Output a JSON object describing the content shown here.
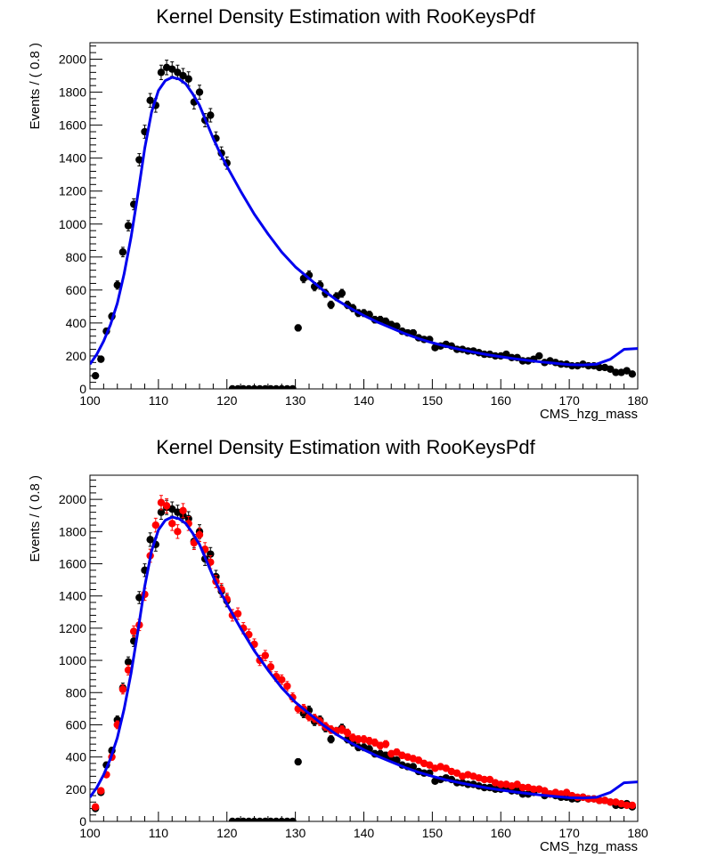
{
  "chart_data": [
    {
      "type": "scatter",
      "title": "Kernel Density Estimation with RooKeysPdf",
      "xlabel": "CMS_hzg_mass",
      "ylabel": "Events / ( 0.8 )",
      "xlim": [
        100,
        180
      ],
      "ylim": [
        0,
        2100
      ],
      "xticks": [
        "100",
        "110",
        "120",
        "130",
        "140",
        "150",
        "160",
        "170",
        "180"
      ],
      "yticks": [
        "0",
        "200",
        "400",
        "600",
        "800",
        "1000",
        "1200",
        "1400",
        "1600",
        "1800",
        "2000"
      ],
      "grid": false,
      "series": [
        {
          "kind": "points",
          "color": "#000000",
          "x": [
            100.8,
            101.6,
            102.4,
            103.2,
            104.0,
            104.8,
            105.6,
            106.4,
            107.2,
            108.0,
            108.8,
            109.6,
            110.4,
            111.2,
            112.0,
            112.8,
            113.6,
            114.4,
            115.2,
            116.0,
            116.8,
            117.6,
            118.4,
            119.2,
            120.0,
            120.8,
            121.6,
            122.4,
            123.2,
            124.0,
            124.8,
            125.6,
            126.4,
            127.2,
            128.0,
            128.8,
            129.6,
            130.4,
            131.2,
            132.0,
            132.8,
            133.6,
            134.4,
            135.2,
            136.0,
            136.8,
            137.6,
            138.4,
            139.2,
            140.0,
            140.8,
            141.6,
            142.4,
            143.2,
            144.0,
            144.8,
            145.6,
            146.4,
            147.2,
            148.0,
            148.8,
            149.6,
            150.4,
            151.2,
            152.0,
            152.8,
            153.6,
            154.4,
            155.2,
            156.0,
            156.8,
            157.6,
            158.4,
            159.2,
            160.0,
            160.8,
            161.6,
            162.4,
            163.2,
            164.0,
            164.8,
            165.6,
            166.4,
            167.2,
            168.0,
            168.8,
            169.6,
            170.4,
            171.2,
            172.0,
            172.8,
            173.6,
            174.4,
            175.2,
            176.0,
            176.8,
            177.6,
            178.4,
            179.2
          ],
          "y": [
            80,
            180,
            350,
            440,
            630,
            830,
            990,
            1120,
            1390,
            1560,
            1750,
            1720,
            1920,
            1950,
            1940,
            1920,
            1900,
            1880,
            1740,
            1800,
            1630,
            1660,
            1520,
            1430,
            1370,
            0,
            0,
            0,
            0,
            0,
            0,
            0,
            0,
            0,
            0,
            0,
            0,
            370,
            670,
            690,
            620,
            630,
            580,
            510,
            560,
            580,
            510,
            490,
            460,
            460,
            450,
            420,
            420,
            410,
            390,
            380,
            350,
            340,
            340,
            310,
            300,
            300,
            250,
            260,
            270,
            260,
            240,
            240,
            230,
            230,
            220,
            210,
            210,
            200,
            200,
            210,
            190,
            190,
            170,
            170,
            180,
            200,
            160,
            170,
            160,
            150,
            150,
            140,
            140,
            150,
            140,
            140,
            130,
            130,
            120,
            100,
            100,
            110,
            90
          ]
        },
        {
          "kind": "curve",
          "color": "#0000ee",
          "x": [
            100,
            101,
            102,
            103,
            104,
            105,
            106,
            107,
            108,
            109,
            110,
            111,
            112,
            113,
            114,
            115,
            116,
            117,
            118,
            119,
            120,
            122,
            124,
            126,
            128,
            130,
            132,
            134,
            136,
            138,
            140,
            142,
            144,
            146,
            148,
            150,
            152,
            154,
            156,
            158,
            160,
            162,
            164,
            166,
            168,
            170,
            172,
            174,
            176,
            178,
            180
          ],
          "y": [
            150,
            210,
            290,
            390,
            520,
            700,
            920,
            1180,
            1460,
            1680,
            1810,
            1870,
            1890,
            1880,
            1850,
            1790,
            1720,
            1620,
            1520,
            1430,
            1350,
            1200,
            1060,
            940,
            830,
            740,
            670,
            600,
            540,
            490,
            445,
            405,
            370,
            335,
            305,
            280,
            258,
            240,
            223,
            208,
            195,
            183,
            173,
            163,
            155,
            147,
            145,
            150,
            180,
            240,
            245
          ]
        }
      ]
    },
    {
      "type": "scatter",
      "title": "Kernel Density Estimation with RooKeysPdf",
      "xlabel": "CMS_hzg_mass",
      "ylabel": "Events / ( 0.8 )",
      "xlim": [
        100,
        180
      ],
      "ylim": [
        0,
        2150
      ],
      "xticks": [
        "100",
        "110",
        "120",
        "130",
        "140",
        "150",
        "160",
        "170",
        "180"
      ],
      "yticks": [
        "0",
        "200",
        "400",
        "600",
        "800",
        "1000",
        "1200",
        "1400",
        "1600",
        "1800",
        "2000"
      ],
      "grid": false,
      "series": [
        {
          "kind": "points",
          "color": "#000000",
          "x": [
            100.8,
            101.6,
            102.4,
            103.2,
            104.0,
            104.8,
            105.6,
            106.4,
            107.2,
            108.0,
            108.8,
            109.6,
            110.4,
            111.2,
            112.0,
            112.8,
            113.6,
            114.4,
            115.2,
            116.0,
            116.8,
            117.6,
            118.4,
            119.2,
            120.0,
            120.8,
            121.6,
            122.4,
            123.2,
            124.0,
            124.8,
            125.6,
            126.4,
            127.2,
            128.0,
            128.8,
            129.6,
            130.4,
            131.2,
            132.0,
            132.8,
            133.6,
            134.4,
            135.2,
            136.0,
            136.8,
            137.6,
            138.4,
            139.2,
            140.0,
            140.8,
            141.6,
            142.4,
            143.2,
            144.0,
            144.8,
            145.6,
            146.4,
            147.2,
            148.0,
            148.8,
            149.6,
            150.4,
            151.2,
            152.0,
            152.8,
            153.6,
            154.4,
            155.2,
            156.0,
            156.8,
            157.6,
            158.4,
            159.2,
            160.0,
            160.8,
            161.6,
            162.4,
            163.2,
            164.0,
            164.8,
            165.6,
            166.4,
            167.2,
            168.0,
            168.8,
            169.6,
            170.4,
            171.2,
            172.0,
            172.8,
            173.6,
            174.4,
            175.2,
            176.0,
            176.8,
            177.6,
            178.4,
            179.2
          ],
          "y": [
            80,
            180,
            350,
            440,
            630,
            830,
            990,
            1120,
            1390,
            1560,
            1750,
            1720,
            1920,
            1950,
            1940,
            1920,
            1900,
            1880,
            1740,
            1800,
            1630,
            1660,
            1520,
            1430,
            1370,
            0,
            0,
            0,
            0,
            0,
            0,
            0,
            0,
            0,
            0,
            0,
            0,
            370,
            670,
            690,
            620,
            630,
            580,
            510,
            560,
            580,
            510,
            490,
            460,
            460,
            450,
            420,
            420,
            410,
            390,
            380,
            350,
            340,
            340,
            310,
            300,
            300,
            250,
            260,
            270,
            260,
            240,
            240,
            230,
            230,
            220,
            210,
            210,
            200,
            200,
            210,
            190,
            190,
            170,
            170,
            180,
            200,
            160,
            170,
            160,
            150,
            150,
            140,
            140,
            150,
            140,
            140,
            130,
            130,
            120,
            100,
            100,
            110,
            90
          ]
        },
        {
          "kind": "points",
          "color": "#ff0000",
          "x": [
            100.8,
            101.6,
            102.4,
            103.2,
            104.0,
            104.8,
            105.6,
            106.4,
            107.2,
            108.0,
            108.8,
            109.6,
            110.4,
            111.2,
            112.0,
            112.8,
            113.6,
            114.4,
            115.2,
            116.0,
            116.8,
            117.6,
            118.4,
            119.2,
            120.0,
            120.8,
            121.6,
            122.4,
            123.2,
            124.0,
            124.8,
            125.6,
            126.4,
            127.2,
            128.0,
            128.8,
            129.6,
            130.4,
            131.2,
            132.0,
            132.8,
            133.6,
            134.4,
            135.2,
            136.0,
            136.8,
            137.6,
            138.4,
            139.2,
            140.0,
            140.8,
            141.6,
            142.4,
            143.2,
            144.0,
            144.8,
            145.6,
            146.4,
            147.2,
            148.0,
            148.8,
            149.6,
            150.4,
            151.2,
            152.0,
            152.8,
            153.6,
            154.4,
            155.2,
            156.0,
            156.8,
            157.6,
            158.4,
            159.2,
            160.0,
            160.8,
            161.6,
            162.4,
            163.2,
            164.0,
            164.8,
            165.6,
            166.4,
            167.2,
            168.0,
            168.8,
            169.6,
            170.4,
            171.2,
            172.0,
            172.8,
            173.6,
            174.4,
            175.2,
            176.0,
            176.8,
            177.6,
            178.4,
            179.2
          ],
          "y": [
            90,
            190,
            290,
            400,
            600,
            820,
            940,
            1180,
            1220,
            1410,
            1650,
            1840,
            1980,
            1960,
            1850,
            1800,
            1930,
            1850,
            1730,
            1780,
            1690,
            1610,
            1490,
            1440,
            1380,
            1280,
            1290,
            1200,
            1160,
            1100,
            1000,
            1030,
            960,
            900,
            880,
            840,
            770,
            700,
            700,
            650,
            640,
            620,
            590,
            570,
            560,
            570,
            550,
            520,
            510,
            510,
            500,
            490,
            470,
            480,
            420,
            430,
            410,
            400,
            390,
            380,
            360,
            350,
            330,
            340,
            330,
            310,
            300,
            280,
            290,
            280,
            270,
            260,
            260,
            240,
            230,
            230,
            220,
            230,
            210,
            210,
            200,
            200,
            190,
            170,
            180,
            170,
            180,
            160,
            150,
            150,
            140,
            140,
            130,
            130,
            120,
            120,
            110,
            100,
            100
          ]
        },
        {
          "kind": "curve",
          "color": "#0000ee",
          "x": [
            100,
            101,
            102,
            103,
            104,
            105,
            106,
            107,
            108,
            109,
            110,
            111,
            112,
            113,
            114,
            115,
            116,
            117,
            118,
            119,
            120,
            122,
            124,
            126,
            128,
            130,
            132,
            134,
            136,
            138,
            140,
            142,
            144,
            146,
            148,
            150,
            152,
            154,
            156,
            158,
            160,
            162,
            164,
            166,
            168,
            170,
            172,
            174,
            176,
            178,
            180
          ],
          "y": [
            150,
            210,
            290,
            390,
            520,
            700,
            920,
            1180,
            1460,
            1680,
            1810,
            1870,
            1890,
            1880,
            1850,
            1790,
            1720,
            1620,
            1520,
            1430,
            1350,
            1200,
            1060,
            940,
            830,
            740,
            670,
            600,
            540,
            490,
            445,
            405,
            370,
            335,
            305,
            280,
            258,
            240,
            223,
            208,
            195,
            183,
            173,
            163,
            155,
            147,
            145,
            150,
            180,
            240,
            245
          ]
        }
      ]
    }
  ]
}
